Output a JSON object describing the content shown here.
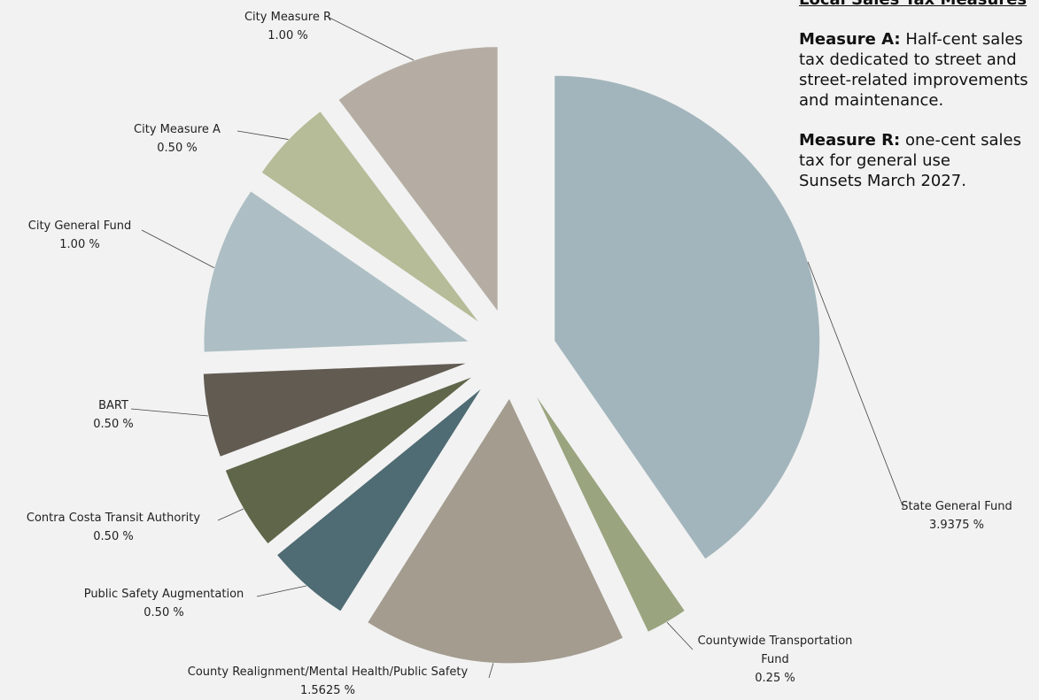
{
  "chart_data": {
    "type": "pie",
    "categories": [
      "State General Fund",
      "Countywide Transportation Fund",
      "County Realignment/Mental Health/Public Safety",
      "Public Safety Augmentation",
      "Contra Costa Transit Authority",
      "BART",
      "City General Fund",
      "City Measure A",
      "City Measure R"
    ],
    "values": [
      3.9375,
      0.25,
      1.5625,
      0.5,
      0.5,
      0.5,
      1.0,
      0.5,
      1.0
    ],
    "value_labels": [
      "3.9375 %",
      "0.25 %",
      "1.5625 %",
      "0.50 %",
      "0.50 %",
      "0.50 %",
      "1.00 %",
      "0.50 %",
      "1.00 %"
    ],
    "colors": [
      "#a3b5bc",
      "#9aa47f",
      "#a39c8f",
      "#4f6b73",
      "#5f6649",
      "#625b52",
      "#adbfc4",
      "#b6bb98",
      "#b5ada3"
    ],
    "exploded": true
  },
  "side_panel": {
    "title": "Local Sales Tax Measures",
    "measures": [
      {
        "name": "Measure A:",
        "lines": [
          "Half-cent sales",
          "tax dedicated to street and",
          "street-related improvements",
          "and maintenance."
        ]
      },
      {
        "name": "Measure R:",
        "lines": [
          "one-cent sales",
          "tax for general use",
          "Sunsets March 2027."
        ]
      }
    ]
  }
}
